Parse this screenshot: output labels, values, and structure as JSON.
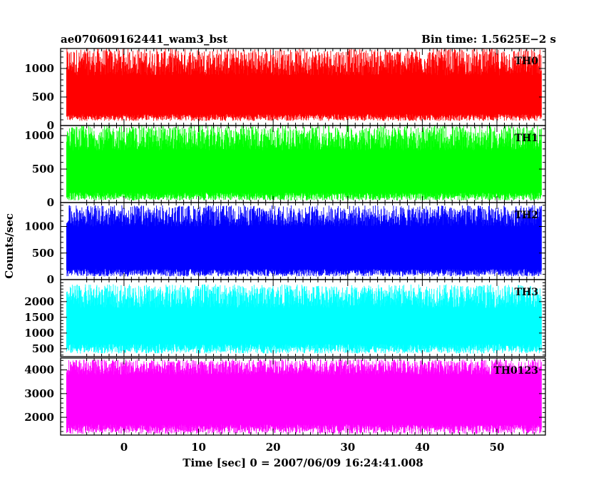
{
  "header": {
    "left_title": "ae070609162441_wam3_bst",
    "right_title": "Bin time: 1.5625E−2 s"
  },
  "chart_data": {
    "type": "line",
    "xlabel": "Time [sec] 0 = 2007/06/09 16:24:41.008",
    "ylabel": "Counts/sec",
    "xlim": [
      -8.5,
      56.5
    ],
    "x_data_range": [
      -7.7,
      56.0
    ],
    "x_ticks": [
      0,
      10,
      20,
      30,
      40,
      50
    ],
    "x_tick_labels": [
      "0",
      "10",
      "20",
      "30",
      "40",
      "50"
    ],
    "panels": [
      {
        "name": "TH0",
        "color": "#ff0000",
        "ylim": [
          0,
          1350
        ],
        "y_ticks": [
          0,
          500,
          1000
        ],
        "y_tick_labels": [
          "0",
          "500",
          "1000"
        ],
        "level_mean": 600,
        "low_range": [
          80,
          200
        ],
        "high_range": [
          880,
          1350
        ]
      },
      {
        "name": "TH1",
        "color": "#00ff00",
        "ylim": [
          0,
          1150
        ],
        "y_ticks": [
          0,
          500,
          1000
        ],
        "y_tick_labels": [
          "0",
          "500",
          "1000"
        ],
        "level_mean": 520,
        "low_range": [
          30,
          150
        ],
        "high_range": [
          780,
          1150
        ]
      },
      {
        "name": "TH2",
        "color": "#0000ff",
        "ylim": [
          0,
          1450
        ],
        "y_ticks": [
          0,
          500,
          1000
        ],
        "y_tick_labels": [
          "0",
          "500",
          "1000"
        ],
        "level_mean": 650,
        "low_range": [
          60,
          200
        ],
        "high_range": [
          1000,
          1400
        ]
      },
      {
        "name": "TH3",
        "color": "#00ffff",
        "ylim": [
          250,
          2700
        ],
        "y_ticks": [
          500,
          1000,
          1500,
          2000
        ],
        "y_tick_labels": [
          "500",
          "1000",
          "1500",
          "2000"
        ],
        "level_mean": 1200,
        "low_range": [
          350,
          650
        ],
        "high_range": [
          1800,
          2550
        ]
      },
      {
        "name": "TH0123",
        "color": "#ff00ff",
        "ylim": [
          1250,
          4500
        ],
        "y_ticks": [
          2000,
          3000,
          4000
        ],
        "y_tick_labels": [
          "2000",
          "3000",
          "4000"
        ],
        "level_mean": 2800,
        "low_range": [
          1300,
          1700
        ],
        "high_range": [
          3800,
          4450
        ]
      }
    ]
  }
}
